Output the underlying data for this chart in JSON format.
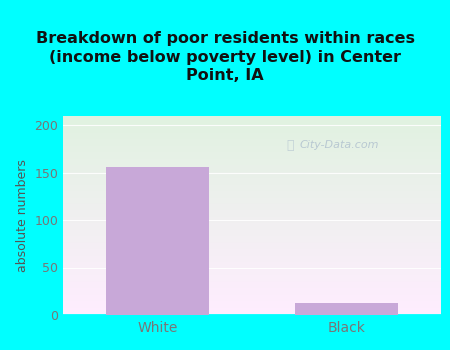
{
  "categories": [
    "White",
    "Black"
  ],
  "values": [
    156,
    13
  ],
  "bar_color": "#c8a8d8",
  "title": "Breakdown of poor residents within races\n(income below poverty level) in Center\nPoint, IA",
  "ylabel": "absolute numbers",
  "ylim": [
    0,
    210
  ],
  "yticks": [
    0,
    50,
    100,
    150,
    200
  ],
  "title_fontsize": 12,
  "title_color": "#111111",
  "title_bg_color": "#00ffff",
  "plot_bg_color_topleft": "#e8f5e8",
  "plot_bg_color_topright": "#c8e8d8",
  "plot_bg_color_bottom": "#f8fff8",
  "tick_color": "#777777",
  "ylabel_color": "#555555",
  "watermark_text": "City-Data.com",
  "outer_bg_color": "#00ffff"
}
